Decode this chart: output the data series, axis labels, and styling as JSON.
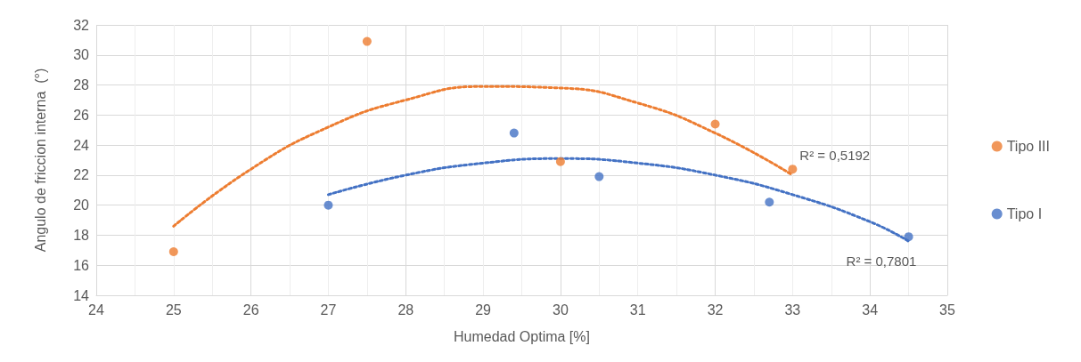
{
  "chart_data": {
    "type": "scatter",
    "xlabel": "Humedad Optima [%]",
    "ylabel": "Angulo de friccion interna  (°)",
    "xlim": [
      24,
      35
    ],
    "xticks": [
      24,
      25,
      26,
      27,
      28,
      29,
      30,
      31,
      32,
      33,
      34,
      35
    ],
    "ylim": [
      14,
      32
    ],
    "yticks": [
      14,
      16,
      18,
      20,
      22,
      24,
      26,
      28,
      30,
      32
    ],
    "grid": true,
    "legend": "right",
    "marker": "circle",
    "series": [
      {
        "name": "Tipo III",
        "color": "#ed7d31",
        "x": [
          25,
          27.5,
          30,
          32,
          33
        ],
        "values": [
          16.9,
          30.9,
          22.9,
          25.4,
          22.4
        ]
      },
      {
        "type": "line",
        "line_style": "dotted",
        "marker": "none",
        "color": "#ed7d31",
        "x": [
          25,
          26,
          27,
          28,
          29,
          30,
          31,
          32,
          33
        ],
        "values": [
          18.6,
          22.4,
          25.2,
          27.0,
          27.9,
          27.8,
          26.8,
          24.8,
          22.0
        ]
      },
      {
        "name": "Tipo I",
        "color": "#4472c4",
        "x": [
          27,
          29.4,
          30.5,
          32.7,
          34.5
        ],
        "values": [
          20.0,
          24.8,
          21.9,
          20.2,
          17.9
        ]
      },
      {
        "type": "line",
        "line_style": "dotted",
        "marker": "none",
        "color": "#4472c4",
        "x": [
          27,
          28,
          29,
          30,
          31,
          32,
          33,
          34,
          34.5
        ],
        "values": [
          20.7,
          22.0,
          22.8,
          23.1,
          22.8,
          22.0,
          20.7,
          18.9,
          17.6
        ]
      }
    ],
    "annotations": [
      "R² = 0,5192",
      "R² = 0,7801"
    ]
  }
}
